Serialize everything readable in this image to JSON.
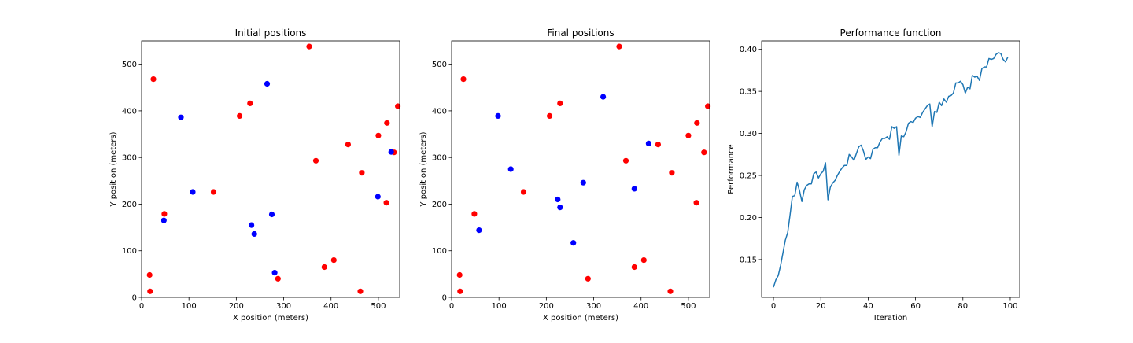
{
  "chart_data": [
    {
      "type": "scatter",
      "title": "Initial positions",
      "xlabel": "X position (meters)",
      "ylabel": "Y position (meters)",
      "xlim": [
        0,
        545
      ],
      "ylim": [
        0,
        550
      ],
      "xticks": [
        0,
        100,
        200,
        300,
        400,
        500
      ],
      "yticks": [
        0,
        100,
        200,
        300,
        400,
        500
      ],
      "series": [
        {
          "name": "red",
          "color": "#ff0000",
          "points": [
            [
              18,
              13
            ],
            [
              17,
              48
            ],
            [
              25,
              468
            ],
            [
              48,
              179
            ],
            [
              152,
              226
            ],
            [
              207,
              389
            ],
            [
              229,
              416
            ],
            [
              288,
              40
            ],
            [
              354,
              538
            ],
            [
              368,
              293
            ],
            [
              386,
              65
            ],
            [
              406,
              80
            ],
            [
              436,
              328
            ],
            [
              462,
              13
            ],
            [
              465,
              267
            ],
            [
              500,
              347
            ],
            [
              518,
              374
            ],
            [
              517,
              203
            ],
            [
              533,
              311
            ],
            [
              541,
              410
            ]
          ]
        },
        {
          "name": "blue",
          "color": "#0000ff",
          "points": [
            [
              47,
              165
            ],
            [
              83,
              386
            ],
            [
              108,
              226
            ],
            [
              232,
              155
            ],
            [
              238,
              136
            ],
            [
              265,
              458
            ],
            [
              275,
              178
            ],
            [
              281,
              53
            ],
            [
              499,
              216
            ],
            [
              527,
              312
            ]
          ]
        }
      ]
    },
    {
      "type": "scatter",
      "title": "Final positions",
      "xlabel": "X position (meters)",
      "ylabel": "Y position (meters)",
      "xlim": [
        0,
        545
      ],
      "ylim": [
        0,
        550
      ],
      "xticks": [
        0,
        100,
        200,
        300,
        400,
        500
      ],
      "yticks": [
        0,
        100,
        200,
        300,
        400,
        500
      ],
      "series": [
        {
          "name": "red",
          "color": "#ff0000",
          "points": [
            [
              18,
              13
            ],
            [
              17,
              48
            ],
            [
              25,
              468
            ],
            [
              48,
              179
            ],
            [
              152,
              226
            ],
            [
              207,
              389
            ],
            [
              229,
              416
            ],
            [
              288,
              40
            ],
            [
              354,
              538
            ],
            [
              368,
              293
            ],
            [
              386,
              65
            ],
            [
              406,
              80
            ],
            [
              436,
              328
            ],
            [
              462,
              13
            ],
            [
              465,
              267
            ],
            [
              500,
              347
            ],
            [
              518,
              374
            ],
            [
              517,
              203
            ],
            [
              533,
              311
            ],
            [
              541,
              410
            ]
          ]
        },
        {
          "name": "blue",
          "color": "#0000ff",
          "points": [
            [
              58,
              144
            ],
            [
              98,
              389
            ],
            [
              125,
              275
            ],
            [
              224,
              210
            ],
            [
              229,
              193
            ],
            [
              257,
              117
            ],
            [
              278,
              246
            ],
            [
              320,
              430
            ],
            [
              386,
              233
            ],
            [
              416,
              330
            ]
          ]
        }
      ]
    },
    {
      "type": "line",
      "title": "Performance function",
      "xlabel": "Iteration",
      "ylabel": "Performance",
      "xlim": [
        -5,
        104
      ],
      "ylim": [
        0.105,
        0.41
      ],
      "xticks": [
        0,
        20,
        40,
        60,
        80,
        100
      ],
      "yticks": [
        0.15,
        0.2,
        0.25,
        0.3,
        0.35,
        0.4
      ],
      "color": "#1f77b4",
      "x": [
        0,
        1,
        2,
        3,
        4,
        5,
        6,
        7,
        8,
        9,
        10,
        11,
        12,
        13,
        14,
        15,
        16,
        17,
        18,
        19,
        20,
        21,
        22,
        23,
        24,
        25,
        26,
        27,
        28,
        29,
        30,
        31,
        32,
        33,
        34,
        35,
        36,
        37,
        38,
        39,
        40,
        41,
        42,
        43,
        44,
        45,
        46,
        47,
        48,
        49,
        50,
        51,
        52,
        53,
        54,
        55,
        56,
        57,
        58,
        59,
        60,
        61,
        62,
        63,
        64,
        65,
        66,
        67,
        68,
        69,
        70,
        71,
        72,
        73,
        74,
        75,
        76,
        77,
        78,
        79,
        80,
        81,
        82,
        83,
        84,
        85,
        86,
        87,
        88,
        89,
        90,
        91,
        92,
        93,
        94,
        95,
        96,
        97,
        98,
        99
      ],
      "y": [
        0.117,
        0.126,
        0.131,
        0.143,
        0.158,
        0.173,
        0.182,
        0.203,
        0.225,
        0.226,
        0.242,
        0.232,
        0.219,
        0.233,
        0.238,
        0.24,
        0.24,
        0.252,
        0.254,
        0.247,
        0.252,
        0.255,
        0.265,
        0.221,
        0.236,
        0.241,
        0.244,
        0.25,
        0.255,
        0.259,
        0.262,
        0.262,
        0.275,
        0.272,
        0.268,
        0.276,
        0.284,
        0.286,
        0.279,
        0.269,
        0.272,
        0.27,
        0.281,
        0.283,
        0.283,
        0.29,
        0.294,
        0.294,
        0.296,
        0.293,
        0.308,
        0.306,
        0.308,
        0.274,
        0.297,
        0.296,
        0.302,
        0.312,
        0.314,
        0.313,
        0.318,
        0.32,
        0.319,
        0.325,
        0.329,
        0.333,
        0.335,
        0.308,
        0.326,
        0.325,
        0.337,
        0.333,
        0.341,
        0.337,
        0.344,
        0.345,
        0.348,
        0.36,
        0.36,
        0.362,
        0.358,
        0.348,
        0.355,
        0.353,
        0.369,
        0.367,
        0.368,
        0.363,
        0.377,
        0.379,
        0.379,
        0.389,
        0.388,
        0.389,
        0.394,
        0.396,
        0.395,
        0.388,
        0.385,
        0.391
      ]
    }
  ]
}
